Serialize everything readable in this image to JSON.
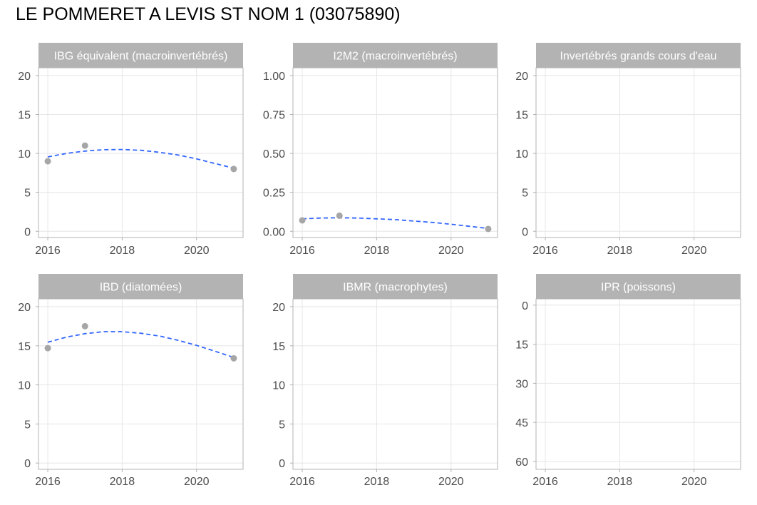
{
  "title": "LE POMMERET A LEVIS ST NOM 1 (03075890)",
  "colors": {
    "strip_bg": "#b3b3b3",
    "strip_text": "#ffffff",
    "grid": "#e6e6e6",
    "panel_border": "#b3b3b3",
    "point": "#a6a6a6",
    "trend": "#3366ff",
    "tick_text": "#4d4d4d"
  },
  "chart_data": [
    {
      "type": "scatter",
      "title": "IBG équivalent (macroinvertébrés)",
      "x_ticks": [
        "2016",
        "2018",
        "2020"
      ],
      "y_ticks": [
        "0",
        "5",
        "10",
        "15",
        "20"
      ],
      "xlim": [
        2015.75,
        2021.25
      ],
      "ylim": [
        -0.8,
        21
      ],
      "points": [
        {
          "x": 2016,
          "y": 9
        },
        {
          "x": 2017,
          "y": 11
        },
        {
          "x": 2021,
          "y": 8
        }
      ],
      "trend": {
        "style": "dashed",
        "points": [
          [
            2016,
            9.55
          ],
          [
            2016.5,
            10.0
          ],
          [
            2017,
            10.3
          ],
          [
            2017.5,
            10.48
          ],
          [
            2018,
            10.5
          ],
          [
            2018.5,
            10.4
          ],
          [
            2019,
            10.15
          ],
          [
            2019.5,
            9.8
          ],
          [
            2020,
            9.3
          ],
          [
            2020.5,
            8.7
          ],
          [
            2021,
            8.1
          ]
        ]
      }
    },
    {
      "type": "scatter",
      "title": "I2M2 (macroinvertébrés)",
      "x_ticks": [
        "2016",
        "2018",
        "2020"
      ],
      "y_ticks": [
        "0.00",
        "0.25",
        "0.50",
        "0.75",
        "1.00"
      ],
      "xlim": [
        2015.75,
        2021.25
      ],
      "ylim": [
        -0.04,
        1.05
      ],
      "points": [
        {
          "x": 2016,
          "y": 0.07
        },
        {
          "x": 2017,
          "y": 0.1
        },
        {
          "x": 2021,
          "y": 0.015
        }
      ],
      "trend": {
        "style": "dashed",
        "points": [
          [
            2016,
            0.08
          ],
          [
            2016.5,
            0.085
          ],
          [
            2017,
            0.087
          ],
          [
            2017.5,
            0.085
          ],
          [
            2018,
            0.08
          ],
          [
            2018.5,
            0.075
          ],
          [
            2019,
            0.066
          ],
          [
            2019.5,
            0.057
          ],
          [
            2020,
            0.045
          ],
          [
            2020.5,
            0.032
          ],
          [
            2021,
            0.018
          ]
        ]
      }
    },
    {
      "type": "scatter",
      "title": "Invertébrés grands cours d'eau",
      "x_ticks": [
        "2016",
        "2018",
        "2020"
      ],
      "y_ticks": [
        "0",
        "5",
        "10",
        "15",
        "20"
      ],
      "xlim": [
        2015.75,
        2021.25
      ],
      "ylim": [
        -0.8,
        21
      ],
      "points": [],
      "trend": null
    },
    {
      "type": "scatter",
      "title": "IBD (diatomées)",
      "x_ticks": [
        "2016",
        "2018",
        "2020"
      ],
      "y_ticks": [
        "0",
        "5",
        "10",
        "15",
        "20"
      ],
      "xlim": [
        2015.75,
        2021.25
      ],
      "ylim": [
        -0.8,
        21
      ],
      "points": [
        {
          "x": 2016,
          "y": 14.7
        },
        {
          "x": 2017,
          "y": 17.5
        },
        {
          "x": 2021,
          "y": 13.4
        }
      ],
      "trend": {
        "style": "dashed",
        "points": [
          [
            2016,
            15.45
          ],
          [
            2016.5,
            16.1
          ],
          [
            2017,
            16.55
          ],
          [
            2017.5,
            16.8
          ],
          [
            2018,
            16.8
          ],
          [
            2018.5,
            16.6
          ],
          [
            2019,
            16.25
          ],
          [
            2019.5,
            15.7
          ],
          [
            2020,
            15.05
          ],
          [
            2020.5,
            14.3
          ],
          [
            2021,
            13.5
          ]
        ]
      }
    },
    {
      "type": "scatter",
      "title": "IBMR (macrophytes)",
      "x_ticks": [
        "2016",
        "2018",
        "2020"
      ],
      "y_ticks": [
        "0",
        "5",
        "10",
        "15",
        "20"
      ],
      "xlim": [
        2015.75,
        2021.25
      ],
      "ylim": [
        -0.8,
        21
      ],
      "points": [],
      "trend": null
    },
    {
      "type": "scatter",
      "title": "IPR (poissons)",
      "x_ticks": [
        "2016",
        "2018",
        "2020"
      ],
      "y_ticks": [
        "0",
        "15",
        "30",
        "45",
        "60"
      ],
      "y_reversed": true,
      "xlim": [
        2015.75,
        2021.25
      ],
      "ylim": [
        -2.4,
        63
      ],
      "points": [],
      "trend": null
    }
  ]
}
